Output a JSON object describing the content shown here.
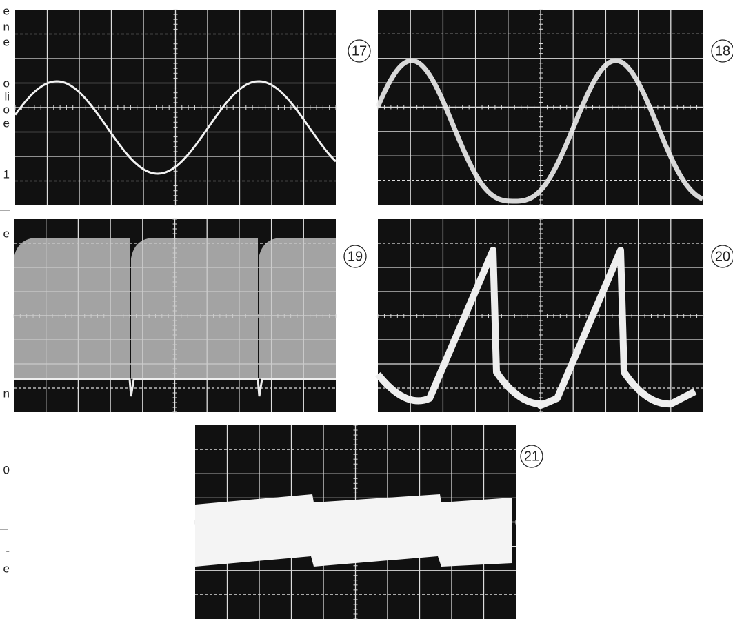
{
  "figures": [
    {
      "label": "17"
    },
    {
      "label": "18"
    },
    {
      "label": "19"
    },
    {
      "label": "20"
    },
    {
      "label": "21"
    }
  ],
  "margin_text": [
    "e",
    "n",
    "e",
    "o",
    "li",
    "o",
    "e",
    "1",
    "e",
    "n",
    "0",
    "-",
    "e"
  ]
}
